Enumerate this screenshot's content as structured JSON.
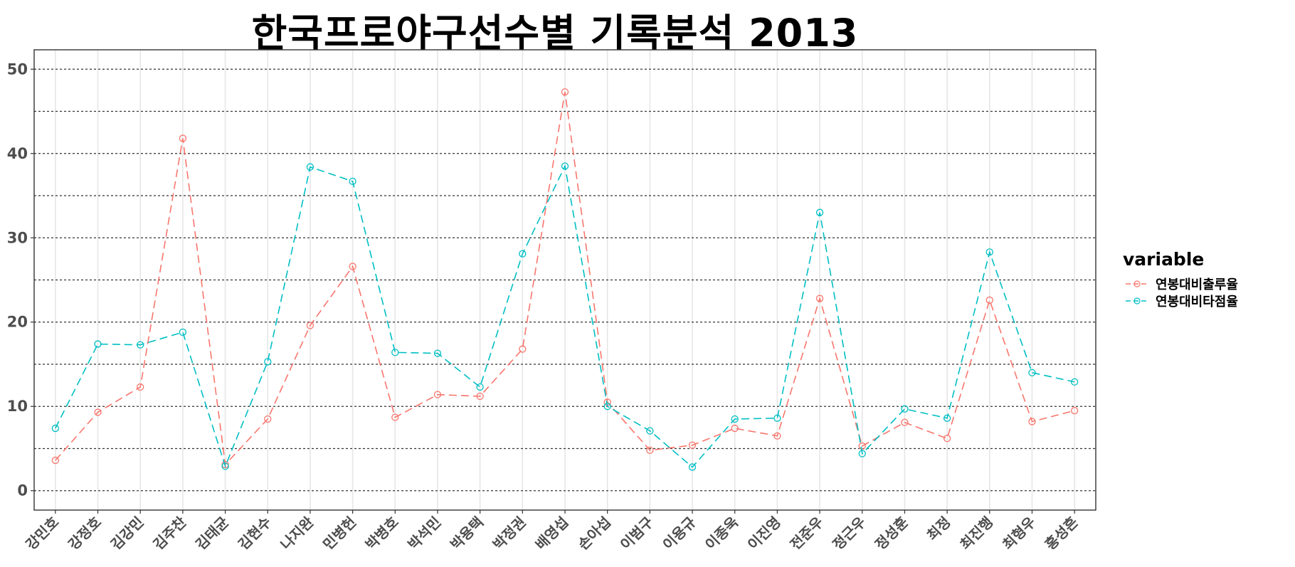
{
  "chart_data": {
    "type": "line",
    "title": "한국프로야구선수별 기록분석 2013",
    "xlabel": "",
    "ylabel": "",
    "ylim": [
      -2.3,
      52.3
    ],
    "yticks": [
      0,
      10,
      20,
      30,
      40,
      50
    ],
    "grid": "horizontal dashed",
    "legend_position": "right",
    "legend_title": "variable",
    "categories": [
      "강민호",
      "강정호",
      "김강민",
      "김주찬",
      "김태균",
      "김현수",
      "나지완",
      "민병헌",
      "박병호",
      "박석민",
      "박용택",
      "박정권",
      "배영섭",
      "손아섭",
      "이범구",
      "이용규",
      "이종욱",
      "이진영",
      "전준우",
      "정근우",
      "정성훈",
      "최정",
      "최진행",
      "최형우",
      "홍성흔"
    ],
    "series": [
      {
        "name": "연봉대비출루율",
        "color": "#F8766D",
        "values": [
          3.6,
          9.3,
          12.3,
          41.8,
          3.1,
          8.5,
          19.6,
          26.6,
          8.7,
          11.4,
          11.2,
          16.8,
          47.3,
          10.5,
          4.8,
          5.4,
          7.4,
          6.5,
          22.8,
          5.3,
          8.1,
          6.2,
          22.6,
          8.2,
          9.5
        ]
      },
      {
        "name": "연봉대비타점율",
        "color": "#00BFC4",
        "values": [
          7.4,
          17.4,
          17.3,
          18.8,
          2.9,
          15.3,
          38.4,
          36.7,
          16.4,
          16.3,
          12.3,
          28.1,
          38.5,
          10.0,
          7.1,
          2.8,
          8.5,
          8.6,
          33.0,
          4.4,
          9.7,
          8.6,
          28.3,
          14.0,
          12.9
        ]
      }
    ]
  }
}
